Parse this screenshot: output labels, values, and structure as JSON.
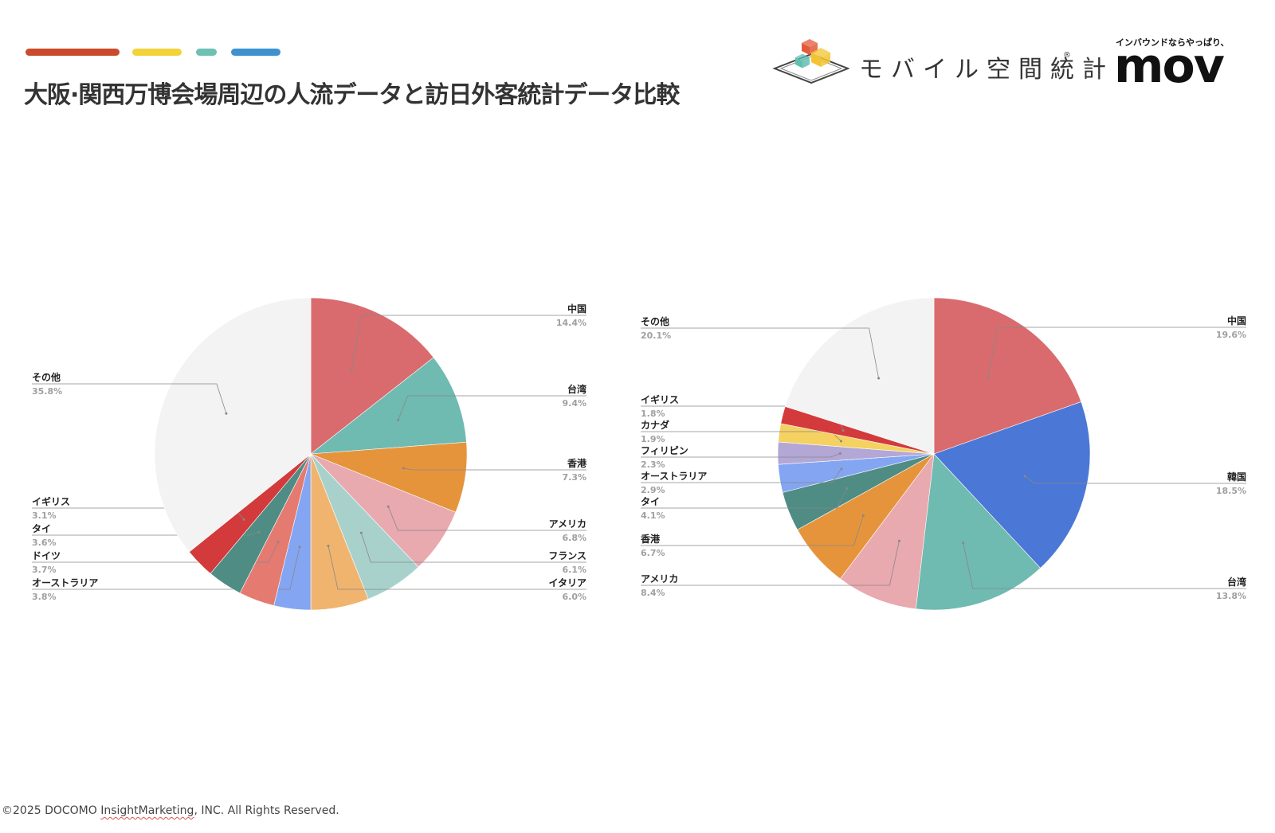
{
  "header": {
    "title": "大阪·関西万博会場周辺の人流データと訪日外客統計データ比較",
    "accent_colors": [
      "#cc4a2c",
      "#f3d33a",
      "#6ec0b2",
      "#3e92cf"
    ]
  },
  "logos": {
    "mobile_kukan": {
      "text": "モバイル空間統計",
      "registered_mark": "®",
      "cube_colors": [
        "#e35a3a",
        "#f3c432",
        "#5fbfb0"
      ]
    },
    "mov": {
      "tagline": "インバウンドならやっぱり、",
      "wordmark": "mov"
    }
  },
  "charts": [
    {
      "name": "left-pie",
      "slices": [
        {
          "label": "中国",
          "pct": "14.4%",
          "color": "#d96b6e"
        },
        {
          "label": "台湾",
          "pct": "9.4%",
          "color": "#6fbab1"
        },
        {
          "label": "香港",
          "pct": "7.3%",
          "color": "#e6943b"
        },
        {
          "label": "アメリカ",
          "pct": "6.8%",
          "color": "#e8a9af"
        },
        {
          "label": "フランス",
          "pct": "6.1%",
          "color": "#a9d1cc"
        },
        {
          "label": "イタリア",
          "pct": "6.0%",
          "color": "#f0b46f"
        },
        {
          "label": "オーストラリア",
          "pct": "3.8%",
          "color": "#84a5f2"
        },
        {
          "label": "ドイツ",
          "pct": "3.7%",
          "color": "#e57a70"
        },
        {
          "label": "タイ",
          "pct": "3.6%",
          "color": "#4e8c84"
        },
        {
          "label": "イギリス",
          "pct": "3.1%",
          "color": "#d33a3c"
        },
        {
          "label": "その他",
          "pct": "35.8%",
          "color": "#f3f3f3"
        }
      ]
    },
    {
      "name": "right-pie",
      "slices": [
        {
          "label": "中国",
          "pct": "19.6%",
          "color": "#d96b6e"
        },
        {
          "label": "韓国",
          "pct": "18.5%",
          "color": "#4b77d6"
        },
        {
          "label": "台湾",
          "pct": "13.8%",
          "color": "#6fbab1"
        },
        {
          "label": "アメリカ",
          "pct": "8.4%",
          "color": "#e8a9af"
        },
        {
          "label": "香港",
          "pct": "6.7%",
          "color": "#e6943b"
        },
        {
          "label": "タイ",
          "pct": "4.1%",
          "color": "#4e8c84"
        },
        {
          "label": "オーストラリア",
          "pct": "2.9%",
          "color": "#84a5f2"
        },
        {
          "label": "フィリピン",
          "pct": "2.3%",
          "color": "#b3a7d6"
        },
        {
          "label": "カナダ",
          "pct": "1.9%",
          "color": "#f4d160"
        },
        {
          "label": "イギリス",
          "pct": "1.8%",
          "color": "#d33a3c"
        },
        {
          "label": "その他",
          "pct": "20.1%",
          "color": "#f3f3f3"
        }
      ]
    }
  ],
  "chart_data": [
    {
      "type": "pie",
      "title": "",
      "labels": [
        "中国",
        "台湾",
        "香港",
        "アメリカ",
        "フランス",
        "イタリア",
        "オーストラリア",
        "ドイツ",
        "タイ",
        "イギリス",
        "その他"
      ],
      "values": [
        14.4,
        9.4,
        7.3,
        6.8,
        6.1,
        6.0,
        3.8,
        3.7,
        3.6,
        3.1,
        35.8
      ],
      "unit": "%",
      "legend": "none"
    },
    {
      "type": "pie",
      "title": "",
      "labels": [
        "中国",
        "韓国",
        "台湾",
        "アメリカ",
        "香港",
        "タイ",
        "オーストラリア",
        "フィリピン",
        "カナダ",
        "イギリス",
        "その他"
      ],
      "values": [
        19.6,
        18.5,
        13.8,
        8.4,
        6.7,
        4.1,
        2.9,
        2.3,
        1.9,
        1.8,
        20.1
      ],
      "unit": "%",
      "legend": "none"
    }
  ],
  "footer": {
    "prefix": "©2025 DOCOMO ",
    "brand": "InsightMarketing",
    "suffix": ", INC. All Rights Reserved."
  }
}
